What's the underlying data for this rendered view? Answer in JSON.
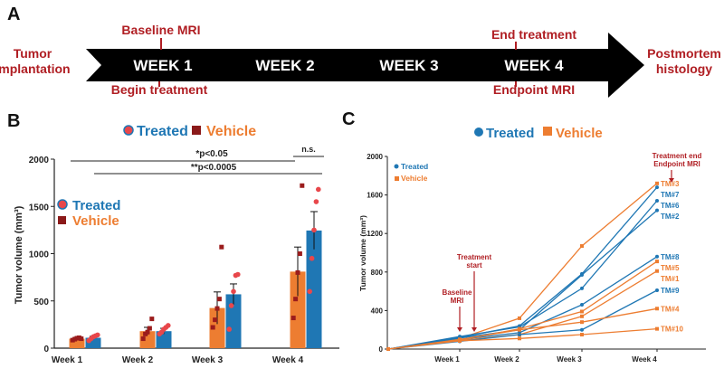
{
  "panel_a": {
    "letter": "A",
    "weeks": [
      "WEEK 1",
      "WEEK 2",
      "WEEK 3",
      "WEEK 4"
    ],
    "left_label": [
      "Tumor",
      "implantation"
    ],
    "right_label": [
      "Postmortem",
      "histology"
    ],
    "above": [
      {
        "text": "Baseline  MRI",
        "week_index": 0
      },
      {
        "text": "End treatment",
        "week_index": 3
      }
    ],
    "below": [
      {
        "text": "Begin treatment",
        "week_index": 0
      },
      {
        "text": "Endpoint MRI",
        "week_index": 3
      }
    ],
    "colors": {
      "arrow": "#000000",
      "text": "#b01e23"
    }
  },
  "panel_b": {
    "letter": "B",
    "legend_top": {
      "treated": "Treated",
      "vehicle": "Vehicle"
    },
    "legend_inner": {
      "treated": "Treated",
      "vehicle": "Vehicle"
    },
    "sig": [
      {
        "label": "*p<0.05"
      },
      {
        "label": "**p<0.0005"
      },
      {
        "label": "n.s."
      }
    ]
  },
  "panel_c": {
    "letter": "C",
    "legend_top": {
      "treated": "Treated",
      "vehicle": "Vehicle"
    },
    "legend_inner": {
      "treated": "Treated",
      "vehicle": "Vehicle"
    },
    "annotations": {
      "treatment_end": [
        "Treatment end",
        "Endpoint MRI"
      ],
      "treatment_start": [
        "Treatment",
        "start"
      ],
      "baseline": [
        "Baseline",
        "MRI"
      ]
    }
  },
  "chart_data": [
    {
      "type": "bar",
      "title": "",
      "xlabel": "",
      "ylabel": "Tumor volume (mm³)",
      "ylim": [
        0,
        2000
      ],
      "yticks": [
        0,
        500,
        1000,
        1500,
        2000
      ],
      "categories": [
        "Week 1",
        "Week 2",
        "Week 3",
        "Week 4"
      ],
      "series": [
        {
          "name": "Vehicle",
          "color": "#ed7d31",
          "values": [
            100,
            180,
            425,
            810
          ],
          "errors": [
            15,
            40,
            170,
            260
          ],
          "points": [
            [
              85,
              95,
              105,
              110,
              100
            ],
            [
              100,
              150,
              170,
              210,
              310
            ],
            [
              220,
              300,
              420,
              520,
              1070
            ],
            [
              320,
              520,
              800,
              1000,
              1720
            ]
          ]
        },
        {
          "name": "Treated",
          "color": "#1f77b4",
          "values": [
            110,
            180,
            570,
            1245
          ],
          "errors": [
            15,
            30,
            110,
            200
          ],
          "points": [
            [
              80,
              100,
              120,
              130,
              140
            ],
            [
              150,
              170,
              200,
              220,
              240
            ],
            [
              200,
              450,
              600,
              770,
              780
            ],
            [
              600,
              950,
              1250,
              1550,
              1680
            ]
          ]
        }
      ]
    },
    {
      "type": "line",
      "title": "",
      "xlabel": "",
      "ylabel": "Tumor volume (mm³)",
      "ylim": [
        0,
        2000
      ],
      "yticks": [
        0,
        400,
        800,
        1200,
        1600,
        2000
      ],
      "x": [
        "",
        "Week 1",
        "Week 2",
        "Week 3",
        "Week 4"
      ],
      "series": [
        {
          "name": "TM#3",
          "group": "Vehicle",
          "values": [
            0,
            110,
            320,
            1070,
            1720
          ]
        },
        {
          "name": "TM#7",
          "group": "Treated",
          "values": [
            0,
            120,
            240,
            780,
            1680
          ]
        },
        {
          "name": "TM#6",
          "group": "Treated",
          "values": [
            0,
            130,
            230,
            630,
            1540
          ]
        },
        {
          "name": "TM#2",
          "group": "Treated",
          "values": [
            0,
            115,
            200,
            770,
            1440
          ]
        },
        {
          "name": "TM#8",
          "group": "Treated",
          "values": [
            0,
            100,
            170,
            460,
            960
          ]
        },
        {
          "name": "TM#5",
          "group": "Vehicle",
          "values": [
            0,
            95,
            210,
            390,
            910
          ]
        },
        {
          "name": "TM#1",
          "group": "Vehicle",
          "values": [
            0,
            90,
            150,
            340,
            810
          ]
        },
        {
          "name": "TM#9",
          "group": "Treated",
          "values": [
            0,
            80,
            150,
            200,
            610
          ]
        },
        {
          "name": "TM#4",
          "group": "Vehicle",
          "values": [
            0,
            100,
            200,
            280,
            420
          ]
        },
        {
          "name": "TM#10",
          "group": "Vehicle",
          "values": [
            0,
            85,
            110,
            150,
            210
          ]
        }
      ]
    }
  ],
  "colors": {
    "treated": "#1f77b4",
    "vehicle": "#ed7d31",
    "dark_red": "#b01e23",
    "point_red": "#e8474b"
  }
}
